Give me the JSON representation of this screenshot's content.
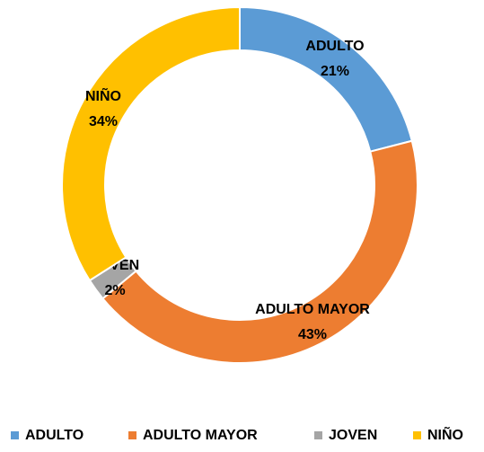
{
  "chart_data": {
    "type": "donut",
    "categories": [
      "ADULTO",
      "ADULTO MAYOR",
      "JOVEN",
      "NIÑO"
    ],
    "values": [
      21,
      43,
      2,
      34
    ],
    "value_labels": [
      "21%",
      "43%",
      "2%",
      "34%"
    ],
    "colors": [
      "#5b9bd5",
      "#ed7d31",
      "#a5a5a5",
      "#ffc000"
    ],
    "legend": "bottom"
  }
}
